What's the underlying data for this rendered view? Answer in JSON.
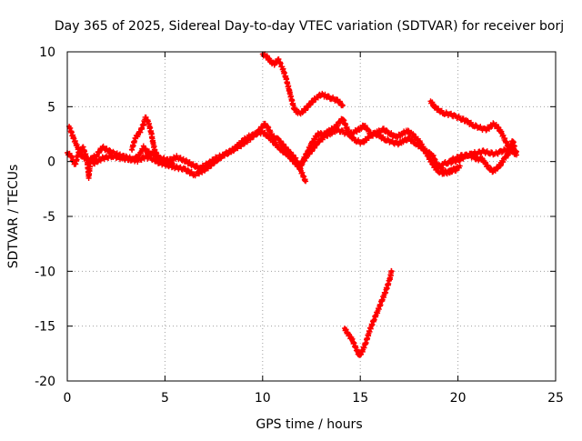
{
  "chart_data": {
    "type": "scatter",
    "title": "Day 365 of 2025, Sidereal Day-to-day VTEC variation (SDTVAR) for receiver borj",
    "xlabel": "GPS time / hours",
    "ylabel": "SDTVAR / TECUs",
    "xlim": [
      0,
      25
    ],
    "ylim": [
      -20,
      10
    ],
    "xticks": [
      0,
      5,
      10,
      15,
      20,
      25
    ],
    "yticks": [
      -20,
      -15,
      -10,
      -5,
      0,
      5,
      10
    ],
    "grid": true,
    "marker": "plus",
    "color": "#ff0000",
    "series": [
      {
        "name": "trace-1",
        "points": [
          [
            0.0,
            0.8
          ],
          [
            0.2,
            0.5
          ],
          [
            0.4,
            -0.3
          ],
          [
            0.6,
            0.9
          ],
          [
            0.8,
            1.3
          ],
          [
            1.0,
            0.3
          ],
          [
            1.1,
            -1.4
          ],
          [
            1.2,
            0.2
          ],
          [
            1.5,
            0.6
          ],
          [
            1.8,
            1.3
          ],
          [
            2.2,
            0.9
          ],
          [
            2.6,
            0.6
          ],
          [
            3.0,
            0.4
          ],
          [
            3.4,
            0.2
          ],
          [
            3.7,
            0.6
          ],
          [
            3.9,
            1.3
          ],
          [
            4.1,
            0.9
          ],
          [
            4.4,
            0.6
          ],
          [
            4.8,
            0.3
          ],
          [
            5.2,
            0.1
          ],
          [
            5.6,
            0.4
          ],
          [
            6.0,
            0.1
          ],
          [
            6.4,
            -0.3
          ],
          [
            6.8,
            -0.6
          ],
          [
            7.2,
            -0.2
          ],
          [
            7.6,
            0.3
          ],
          [
            8.0,
            0.6
          ],
          [
            8.4,
            0.9
          ],
          [
            8.8,
            1.6
          ],
          [
            9.2,
            2.2
          ],
          [
            9.6,
            2.5
          ],
          [
            10.0,
            2.7
          ],
          [
            10.4,
            2.1
          ],
          [
            10.8,
            1.3
          ],
          [
            11.2,
            0.8
          ],
          [
            11.5,
            0.3
          ]
        ]
      },
      {
        "name": "trace-2",
        "points": [
          [
            0.1,
            3.2
          ],
          [
            0.3,
            2.2
          ],
          [
            0.5,
            1.4
          ],
          [
            0.7,
            0.6
          ],
          [
            0.9,
            0.3
          ],
          [
            1.1,
            0.1
          ],
          [
            1.4,
            -0.1
          ],
          [
            1.8,
            0.3
          ],
          [
            2.3,
            0.5
          ],
          [
            2.8,
            0.3
          ],
          [
            3.2,
            0.2
          ],
          [
            3.6,
            0.1
          ],
          [
            4.0,
            0.4
          ],
          [
            4.3,
            0.3
          ],
          [
            4.7,
            -0.1
          ],
          [
            5.1,
            -0.3
          ],
          [
            5.5,
            -0.5
          ],
          [
            6.0,
            -0.7
          ],
          [
            6.5,
            -1.2
          ],
          [
            6.9,
            -0.9
          ],
          [
            7.3,
            -0.4
          ],
          [
            7.7,
            0.2
          ],
          [
            8.1,
            0.7
          ],
          [
            8.5,
            1.1
          ],
          [
            8.9,
            1.5
          ],
          [
            9.3,
            2.0
          ],
          [
            9.7,
            2.6
          ],
          [
            10.1,
            3.4
          ],
          [
            10.3,
            3.0
          ],
          [
            10.5,
            2.3
          ],
          [
            10.8,
            2.0
          ],
          [
            11.1,
            1.4
          ],
          [
            11.4,
            0.8
          ],
          [
            11.7,
            0.2
          ],
          [
            11.9,
            -0.6
          ],
          [
            12.1,
            -1.4
          ],
          [
            12.2,
            -1.8
          ]
        ]
      },
      {
        "name": "trace-3",
        "points": [
          [
            3.3,
            1.1
          ],
          [
            3.5,
            2.2
          ],
          [
            3.7,
            2.6
          ],
          [
            3.9,
            3.4
          ],
          [
            4.0,
            4.0
          ],
          [
            4.15,
            3.6
          ],
          [
            4.3,
            2.6
          ],
          [
            4.4,
            1.6
          ],
          [
            4.5,
            0.9
          ],
          [
            4.7,
            0.3
          ],
          [
            5.0,
            0.0
          ],
          [
            5.4,
            -0.2
          ]
        ]
      },
      {
        "name": "trace-4",
        "points": [
          [
            10.0,
            9.8
          ],
          [
            10.2,
            9.6
          ],
          [
            10.4,
            9.1
          ],
          [
            10.6,
            8.9
          ],
          [
            10.8,
            9.3
          ],
          [
            11.0,
            8.6
          ],
          [
            11.2,
            7.6
          ],
          [
            11.4,
            6.2
          ],
          [
            11.6,
            4.9
          ],
          [
            11.8,
            4.4
          ],
          [
            12.0,
            4.5
          ],
          [
            12.2,
            4.8
          ],
          [
            12.5,
            5.4
          ],
          [
            12.8,
            5.9
          ],
          [
            13.0,
            6.1
          ],
          [
            13.2,
            6.0
          ],
          [
            13.5,
            5.8
          ],
          [
            13.8,
            5.6
          ],
          [
            14.0,
            5.3
          ],
          [
            14.1,
            5.1
          ]
        ]
      },
      {
        "name": "trace-5",
        "points": [
          [
            11.0,
            1.0
          ],
          [
            11.3,
            0.6
          ],
          [
            11.6,
            0.0
          ],
          [
            11.9,
            -0.6
          ],
          [
            12.1,
            0.2
          ],
          [
            12.3,
            0.9
          ],
          [
            12.5,
            1.6
          ],
          [
            12.7,
            2.2
          ],
          [
            12.9,
            2.6
          ],
          [
            13.1,
            2.4
          ],
          [
            13.4,
            2.8
          ],
          [
            13.7,
            3.1
          ],
          [
            13.9,
            3.5
          ],
          [
            14.1,
            3.9
          ],
          [
            14.3,
            3.1
          ],
          [
            14.5,
            2.3
          ],
          [
            14.8,
            1.9
          ],
          [
            15.1,
            1.7
          ],
          [
            15.4,
            2.2
          ],
          [
            15.7,
            2.6
          ],
          [
            16.0,
            2.3
          ],
          [
            16.3,
            2.0
          ],
          [
            16.6,
            1.8
          ],
          [
            16.9,
            1.6
          ],
          [
            17.2,
            1.9
          ],
          [
            17.5,
            2.1
          ],
          [
            17.8,
            1.7
          ],
          [
            18.1,
            1.3
          ],
          [
            18.4,
            0.9
          ],
          [
            18.7,
            0.6
          ],
          [
            18.9,
            -0.2
          ],
          [
            19.1,
            -0.5
          ],
          [
            19.3,
            -0.9
          ],
          [
            19.5,
            -1.0
          ],
          [
            19.7,
            -0.8
          ],
          [
            19.9,
            -0.6
          ]
        ]
      },
      {
        "name": "trace-6",
        "points": [
          [
            12.0,
            -0.2
          ],
          [
            12.3,
            0.6
          ],
          [
            12.6,
            1.2
          ],
          [
            12.9,
            1.9
          ],
          [
            13.2,
            2.3
          ],
          [
            13.5,
            2.6
          ],
          [
            13.8,
            2.9
          ],
          [
            14.1,
            2.7
          ],
          [
            14.4,
            2.5
          ],
          [
            14.7,
            2.7
          ],
          [
            15.0,
            3.0
          ],
          [
            15.2,
            3.3
          ],
          [
            15.4,
            2.8
          ],
          [
            15.6,
            2.4
          ],
          [
            15.9,
            2.7
          ],
          [
            16.2,
            2.9
          ],
          [
            16.5,
            2.6
          ],
          [
            16.8,
            2.2
          ],
          [
            17.1,
            2.5
          ],
          [
            17.4,
            2.8
          ],
          [
            17.7,
            2.4
          ],
          [
            18.0,
            1.9
          ],
          [
            18.2,
            1.3
          ],
          [
            18.4,
            0.7
          ],
          [
            18.6,
            0.1
          ],
          [
            18.8,
            -0.5
          ],
          [
            19.0,
            -0.9
          ],
          [
            19.3,
            -1.1
          ],
          [
            19.6,
            -0.9
          ],
          [
            19.9,
            -0.7
          ],
          [
            20.1,
            -0.4
          ]
        ]
      },
      {
        "name": "trace-7",
        "points": [
          [
            18.6,
            5.5
          ],
          [
            18.8,
            5.0
          ],
          [
            19.0,
            4.7
          ],
          [
            19.3,
            4.4
          ],
          [
            19.6,
            4.3
          ],
          [
            19.9,
            4.1
          ],
          [
            20.2,
            3.9
          ],
          [
            20.5,
            3.6
          ],
          [
            20.8,
            3.3
          ],
          [
            21.1,
            3.1
          ],
          [
            21.4,
            2.9
          ],
          [
            21.6,
            3.1
          ],
          [
            21.8,
            3.4
          ],
          [
            22.0,
            3.2
          ],
          [
            22.2,
            2.7
          ],
          [
            22.4,
            2.0
          ],
          [
            22.6,
            1.3
          ],
          [
            22.8,
            0.9
          ],
          [
            23.0,
            0.6
          ]
        ]
      },
      {
        "name": "trace-8",
        "points": [
          [
            19.6,
            0.1
          ],
          [
            19.9,
            0.3
          ],
          [
            20.2,
            0.5
          ],
          [
            20.5,
            0.6
          ],
          [
            20.8,
            0.4
          ],
          [
            21.0,
            0.2
          ],
          [
            21.2,
            0.3
          ],
          [
            21.4,
            -0.2
          ],
          [
            21.6,
            -0.6
          ],
          [
            21.8,
            -0.9
          ],
          [
            22.0,
            -0.6
          ],
          [
            22.2,
            -0.2
          ],
          [
            22.4,
            0.3
          ],
          [
            22.6,
            0.8
          ],
          [
            22.8,
            1.2
          ],
          [
            23.0,
            0.9
          ]
        ]
      },
      {
        "name": "trace-9",
        "points": [
          [
            19.2,
            -0.2
          ],
          [
            19.5,
            -0.1
          ],
          [
            19.8,
            0.0
          ],
          [
            20.1,
            0.2
          ],
          [
            20.4,
            0.5
          ],
          [
            20.7,
            0.7
          ],
          [
            21.0,
            0.8
          ],
          [
            21.3,
            0.9
          ],
          [
            21.6,
            0.8
          ],
          [
            21.9,
            0.7
          ],
          [
            22.2,
            0.9
          ],
          [
            22.5,
            1.1
          ],
          [
            22.7,
            1.4
          ],
          [
            22.8,
            1.9
          ],
          [
            22.9,
            1.4
          ]
        ]
      },
      {
        "name": "trace-10",
        "points": [
          [
            14.2,
            -15.2
          ],
          [
            14.4,
            -15.8
          ],
          [
            14.6,
            -16.3
          ],
          [
            14.8,
            -17.1
          ],
          [
            14.95,
            -17.7
          ],
          [
            15.1,
            -17.3
          ],
          [
            15.3,
            -16.4
          ],
          [
            15.5,
            -15.3
          ],
          [
            15.7,
            -14.4
          ],
          [
            15.9,
            -13.6
          ],
          [
            16.1,
            -12.7
          ],
          [
            16.3,
            -11.8
          ],
          [
            16.5,
            -10.8
          ],
          [
            16.6,
            -10.0
          ]
        ]
      }
    ]
  }
}
